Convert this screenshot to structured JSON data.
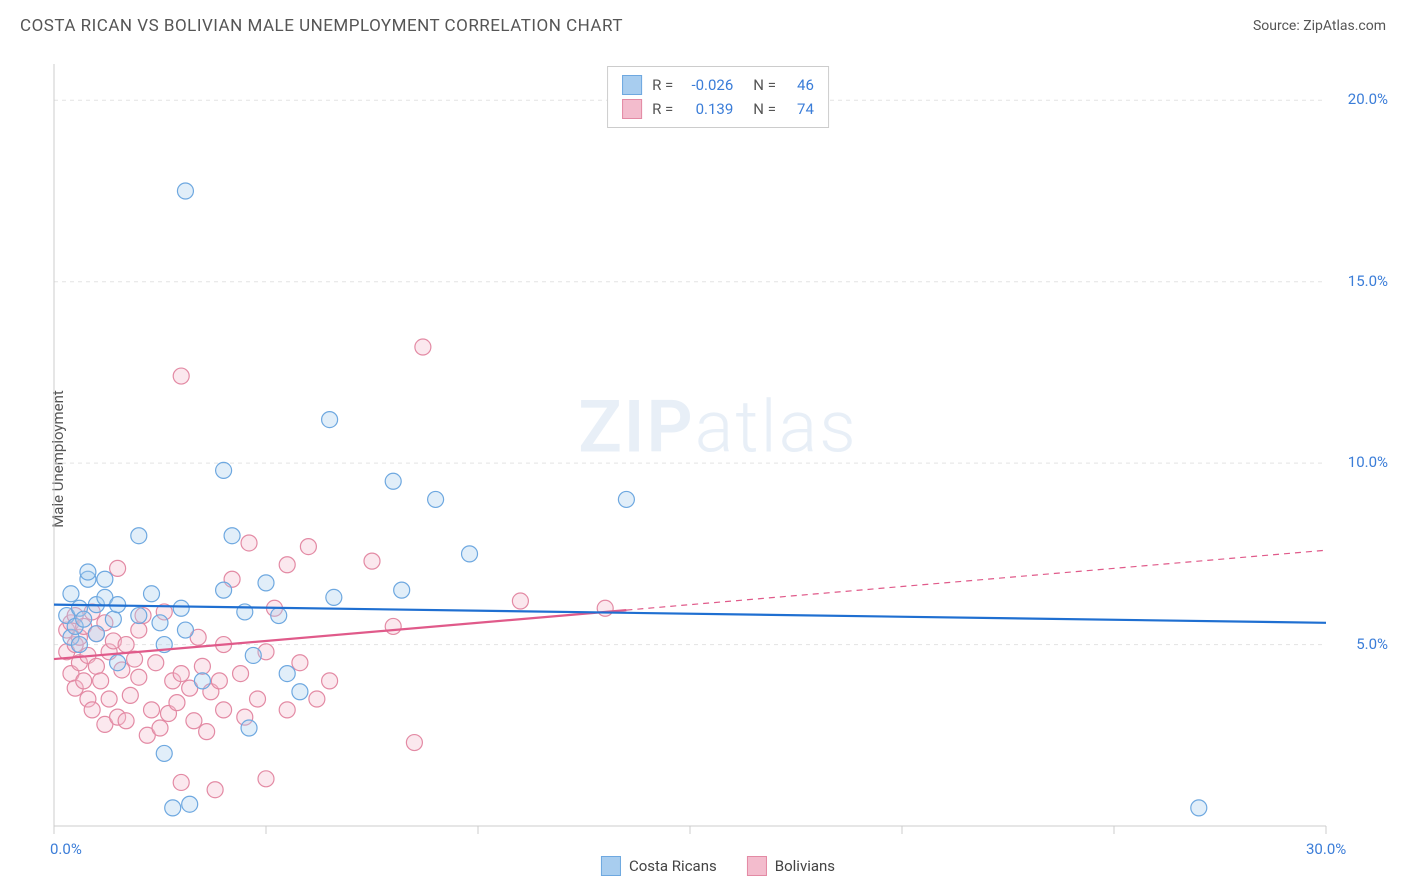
{
  "header": {
    "title": "COSTA RICAN VS BOLIVIAN MALE UNEMPLOYMENT CORRELATION CHART",
    "source": "Source: ZipAtlas.com"
  },
  "ylabel": "Male Unemployment",
  "watermark": {
    "bold": "ZIP",
    "light": "atlas"
  },
  "chart": {
    "type": "scatter",
    "xlim": [
      0,
      30
    ],
    "ylim": [
      0,
      21
    ],
    "background_color": "#ffffff",
    "grid_color": "#e3e3e3",
    "axis_color": "#cccccc",
    "x_ticks": [
      0,
      5,
      10,
      15,
      20,
      25,
      30
    ],
    "x_tick_labels": {
      "0": "0.0%",
      "30": "30.0%"
    },
    "y_gridlines": [
      5,
      10,
      15,
      20
    ],
    "y_tick_labels": {
      "5": "5.0%",
      "10": "10.0%",
      "15": "15.0%",
      "20": "20.0%"
    },
    "marker_radius": 8,
    "marker_stroke_width": 1.2,
    "marker_fill_opacity": 0.35,
    "line_width": 2.2,
    "series": [
      {
        "key": "costa_ricans",
        "label": "Costa Ricans",
        "color_stroke": "#6ea8e0",
        "color_fill": "#a8cdef",
        "line_color": "#1f6fd1",
        "R": "-0.026",
        "N": "46",
        "trend": {
          "x1": 0,
          "y1": 6.1,
          "x2": 30,
          "y2": 5.6,
          "solid_until_x": 30
        },
        "points": [
          [
            0.3,
            5.8
          ],
          [
            0.4,
            5.2
          ],
          [
            0.4,
            6.4
          ],
          [
            0.5,
            5.5
          ],
          [
            0.6,
            6.0
          ],
          [
            0.6,
            5.0
          ],
          [
            0.7,
            5.7
          ],
          [
            0.8,
            6.8
          ],
          [
            0.8,
            7.0
          ],
          [
            1.0,
            6.1
          ],
          [
            1.0,
            5.3
          ],
          [
            1.2,
            6.3
          ],
          [
            1.2,
            6.8
          ],
          [
            1.4,
            5.7
          ],
          [
            1.5,
            6.1
          ],
          [
            1.5,
            4.5
          ],
          [
            2.0,
            8.0
          ],
          [
            2.0,
            5.8
          ],
          [
            2.3,
            6.4
          ],
          [
            2.5,
            5.6
          ],
          [
            2.6,
            5.0
          ],
          [
            2.6,
            2.0
          ],
          [
            2.8,
            0.5
          ],
          [
            3.0,
            6.0
          ],
          [
            3.1,
            5.4
          ],
          [
            3.1,
            17.5
          ],
          [
            3.2,
            0.6
          ],
          [
            3.5,
            4.0
          ],
          [
            4.0,
            9.8
          ],
          [
            4.0,
            6.5
          ],
          [
            4.2,
            8.0
          ],
          [
            4.5,
            5.9
          ],
          [
            4.6,
            2.7
          ],
          [
            4.7,
            4.7
          ],
          [
            5.0,
            6.7
          ],
          [
            5.3,
            5.8
          ],
          [
            5.5,
            4.2
          ],
          [
            5.8,
            3.7
          ],
          [
            6.5,
            11.2
          ],
          [
            6.6,
            6.3
          ],
          [
            8.0,
            9.5
          ],
          [
            8.2,
            6.5
          ],
          [
            9.0,
            9.0
          ],
          [
            9.8,
            7.5
          ],
          [
            13.5,
            9.0
          ],
          [
            27.0,
            0.5
          ]
        ]
      },
      {
        "key": "bolivians",
        "label": "Bolivians",
        "color_stroke": "#e38aa4",
        "color_fill": "#f3bccd",
        "line_color": "#e05a8a",
        "R": "0.139",
        "N": "74",
        "trend": {
          "x1": 0,
          "y1": 4.6,
          "x2": 30,
          "y2": 7.6,
          "solid_until_x": 13.5
        },
        "points": [
          [
            0.3,
            5.4
          ],
          [
            0.3,
            4.8
          ],
          [
            0.4,
            5.6
          ],
          [
            0.4,
            4.2
          ],
          [
            0.5,
            5.0
          ],
          [
            0.5,
            5.8
          ],
          [
            0.5,
            3.8
          ],
          [
            0.6,
            4.5
          ],
          [
            0.6,
            5.2
          ],
          [
            0.7,
            5.5
          ],
          [
            0.7,
            4.0
          ],
          [
            0.8,
            4.7
          ],
          [
            0.8,
            3.5
          ],
          [
            0.9,
            5.9
          ],
          [
            0.9,
            3.2
          ],
          [
            1.0,
            5.3
          ],
          [
            1.0,
            4.4
          ],
          [
            1.1,
            4.0
          ],
          [
            1.2,
            2.8
          ],
          [
            1.2,
            5.6
          ],
          [
            1.3,
            3.5
          ],
          [
            1.3,
            4.8
          ],
          [
            1.4,
            5.1
          ],
          [
            1.5,
            7.1
          ],
          [
            1.5,
            3.0
          ],
          [
            1.6,
            4.3
          ],
          [
            1.7,
            2.9
          ],
          [
            1.7,
            5.0
          ],
          [
            1.8,
            3.6
          ],
          [
            1.9,
            4.6
          ],
          [
            2.0,
            4.1
          ],
          [
            2.0,
            5.4
          ],
          [
            2.1,
            5.8
          ],
          [
            2.2,
            2.5
          ],
          [
            2.3,
            3.2
          ],
          [
            2.4,
            4.5
          ],
          [
            2.5,
            2.7
          ],
          [
            2.6,
            5.9
          ],
          [
            2.7,
            3.1
          ],
          [
            2.8,
            4.0
          ],
          [
            2.9,
            3.4
          ],
          [
            3.0,
            1.2
          ],
          [
            3.0,
            4.2
          ],
          [
            3.0,
            12.4
          ],
          [
            3.2,
            3.8
          ],
          [
            3.3,
            2.9
          ],
          [
            3.4,
            5.2
          ],
          [
            3.5,
            4.4
          ],
          [
            3.6,
            2.6
          ],
          [
            3.7,
            3.7
          ],
          [
            3.8,
            1.0
          ],
          [
            3.9,
            4.0
          ],
          [
            4.0,
            5.0
          ],
          [
            4.0,
            3.2
          ],
          [
            4.2,
            6.8
          ],
          [
            4.4,
            4.2
          ],
          [
            4.5,
            3.0
          ],
          [
            4.6,
            7.8
          ],
          [
            4.8,
            3.5
          ],
          [
            5.0,
            4.8
          ],
          [
            5.0,
            1.3
          ],
          [
            5.2,
            6.0
          ],
          [
            5.5,
            7.2
          ],
          [
            5.5,
            3.2
          ],
          [
            5.8,
            4.5
          ],
          [
            6.0,
            7.7
          ],
          [
            6.2,
            3.5
          ],
          [
            6.5,
            4.0
          ],
          [
            7.5,
            7.3
          ],
          [
            8.0,
            5.5
          ],
          [
            8.5,
            2.3
          ],
          [
            8.7,
            13.2
          ],
          [
            11.0,
            6.2
          ],
          [
            13.0,
            6.0
          ]
        ]
      }
    ]
  }
}
